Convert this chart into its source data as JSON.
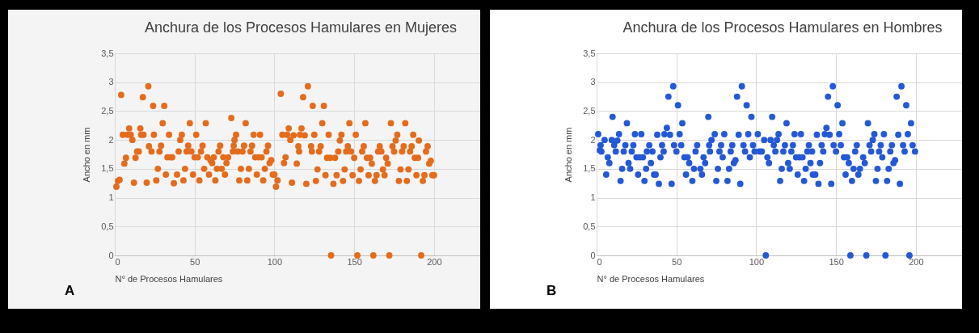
{
  "chart_data": [
    {
      "type": "scatter",
      "title": "Anchura de los Procesos Hamulares en Mujeres",
      "xlabel": "N° de Procesos Hamulares",
      "ylabel": "Ancho en mm",
      "annotations": [
        "A"
      ],
      "marker": "circle",
      "grid": true,
      "xlim": [
        0,
        233
      ],
      "xticks": [
        0,
        50,
        100,
        150,
        200
      ],
      "ylim": [
        0,
        3.5
      ],
      "yticks": [
        0,
        {
          "value": 0.5,
          "label": "0,5"
        },
        1,
        {
          "value": 1.5,
          "label": "1,5"
        },
        2,
        {
          "value": 2.5,
          "label": "2,5"
        },
        3,
        {
          "value": 3.5,
          "label": "3,5"
        }
      ],
      "series": [
        {
          "color": "#e46c1c",
          "x": [
            1,
            2,
            3,
            4,
            5,
            6,
            7,
            8,
            9,
            10,
            11,
            12,
            13,
            14,
            15,
            16,
            16.5,
            17.6,
            18,
            20,
            21,
            21.4,
            23,
            24,
            24.5,
            26,
            27,
            28,
            29,
            30,
            31,
            32,
            33,
            34,
            35,
            36,
            37,
            39,
            40,
            41,
            42,
            43,
            44,
            45,
            46,
            47,
            48,
            49,
            50,
            51,
            52,
            53,
            54,
            55,
            56,
            57,
            58,
            59,
            60,
            61,
            62,
            63,
            64,
            65,
            66,
            67,
            68,
            69,
            70,
            71,
            73,
            74,
            74.5,
            75,
            76,
            77,
            78,
            79,
            80,
            81,
            82,
            83,
            84,
            85,
            86,
            87,
            88,
            89,
            90,
            91,
            92,
            93,
            94,
            95,
            96,
            97,
            98,
            99,
            100,
            101,
            102,
            104,
            105,
            106,
            107,
            108,
            109,
            110,
            111,
            112,
            114,
            115,
            115.5,
            116,
            117,
            118,
            119,
            120,
            121,
            123,
            123.5,
            124,
            125,
            126,
            127,
            128,
            129,
            130,
            131,
            132,
            133,
            134,
            135,
            135.5,
            137,
            138,
            139,
            140,
            141,
            142,
            143,
            144,
            145,
            146,
            147,
            148,
            149,
            150,
            151,
            152,
            153,
            154,
            155,
            156,
            157,
            158,
            159,
            160,
            161,
            162,
            163,
            164,
            165,
            166,
            167,
            168,
            169,
            170,
            171,
            172,
            173,
            174,
            175,
            176,
            177,
            178,
            179,
            180,
            181,
            182,
            183,
            184,
            185,
            186,
            187,
            188,
            189,
            190,
            190.5,
            192,
            193,
            194,
            195,
            196,
            197,
            198,
            199,
            200
          ],
          "values": [
            1.19,
            1.29,
            1.31,
            2.78,
            2.09,
            1.59,
            1.69,
            2.09,
            2.2,
            2.09,
            2.0,
            1.26,
            1.69,
            1.8,
            1.8,
            2.2,
            2.09,
            2.74,
            2.09,
            1.26,
            2.93,
            1.89,
            1.8,
            2.59,
            2.09,
            1.3,
            1.5,
            1.8,
            1.9,
            2.29,
            2.59,
            1.4,
            1.7,
            2.09,
            1.7,
            1.7,
            1.25,
            1.4,
            1.8,
            2.0,
            2.09,
            1.3,
            1.5,
            1.8,
            1.9,
            2.29,
            1.8,
            1.4,
            1.7,
            2.09,
            1.7,
            1.3,
            1.8,
            1.9,
            1.5,
            2.29,
            1.7,
            1.4,
            1.65,
            1.6,
            1.7,
            1.3,
            1.5,
            1.8,
            1.9,
            1.5,
            1.7,
            1.4,
            1.6,
            1.7,
            2.38,
            1.8,
            1.9,
            2.0,
            2.09,
            1.8,
            1.3,
            1.5,
            1.8,
            1.9,
            2.29,
            1.3,
            1.5,
            1.8,
            1.9,
            2.09,
            1.7,
            1.4,
            1.7,
            2.09,
            1.7,
            1.3,
            1.5,
            1.8,
            1.9,
            1.6,
            1.65,
            1.4,
            1.4,
            1.19,
            1.3,
            2.8,
            2.09,
            1.6,
            1.7,
            2.09,
            2.2,
            2.0,
            1.26,
            2.08,
            1.59,
            1.89,
            1.8,
            2.09,
            2.2,
            2.74,
            2.08,
            1.24,
            2.93,
            1.89,
            1.8,
            2.59,
            2.09,
            1.29,
            1.49,
            1.8,
            1.89,
            2.29,
            2.59,
            1.39,
            1.69,
            2.09,
            1.69,
            0,
            1.24,
            1.69,
            1.39,
            1.8,
            1.99,
            2.09,
            1.29,
            1.49,
            1.8,
            1.89,
            2.29,
            1.8,
            1.39,
            1.69,
            2.09,
            0,
            1.29,
            1.49,
            1.8,
            1.89,
            2.29,
            1.69,
            1.39,
            1.69,
            1.59,
            0,
            1.29,
            1.39,
            1.8,
            1.89,
            1.8,
            1.49,
            1.39,
            1.69,
            1.59,
            0,
            2.29,
            1.89,
            1.8,
            1.99,
            2.09,
            1.29,
            1.49,
            1.8,
            1.89,
            2.29,
            1.29,
            1.49,
            1.8,
            1.89,
            2.09,
            1.69,
            1.39,
            1.69,
            1.99,
            0,
            1.29,
            1.39,
            1.8,
            1.89,
            1.59,
            1.64,
            1.39,
            1.39
          ]
        }
      ]
    },
    {
      "type": "scatter",
      "title": "Anchura de los Procesos Hamulares en Hombres",
      "xlabel": "N° de Procesos Hamulares",
      "ylabel": "Ancho en mm",
      "annotations": [
        "B"
      ],
      "marker": "circle",
      "grid": true,
      "xlim": [
        0,
        233
      ],
      "xticks": [
        0,
        50,
        100,
        150,
        200
      ],
      "ylim": [
        0,
        3.5
      ],
      "yticks": [
        0,
        {
          "value": 0.5,
          "label": "0,5"
        },
        1,
        {
          "value": 1.5,
          "label": "1,5"
        },
        2,
        {
          "value": 2.5,
          "label": "2,5"
        },
        3,
        {
          "value": 3.5,
          "label": "3,5"
        }
      ],
      "series": [
        {
          "color": "#2458d6",
          "x": [
            1,
            2,
            2.5,
            3,
            5,
            6,
            7,
            8,
            9.5,
            10,
            11,
            12,
            13,
            14,
            15,
            16,
            17,
            18,
            19,
            20,
            21,
            22,
            23,
            24,
            25,
            26,
            27,
            28,
            29,
            30,
            31,
            31.5,
            33,
            34,
            35,
            36,
            37,
            38,
            39,
            40,
            41,
            42,
            42.5,
            44,
            45,
            46,
            47,
            48,
            48.5,
            50,
            51,
            52,
            53,
            53.7,
            55,
            56,
            57,
            58,
            60,
            61,
            62,
            63,
            65,
            66,
            67,
            68,
            70,
            70.5,
            71,
            72,
            74,
            75,
            76,
            77,
            78,
            79,
            80,
            82,
            83,
            84,
            85,
            86,
            87,
            88,
            89,
            90,
            91,
            92,
            93,
            94,
            95,
            96,
            97,
            98,
            99,
            101,
            102,
            103.5,
            105,
            106,
            107,
            108,
            109,
            110,
            111,
            112,
            113,
            114,
            115,
            116,
            117,
            118,
            119,
            120,
            121,
            122,
            123,
            124,
            125,
            126,
            127,
            128,
            129,
            130,
            131,
            132,
            133,
            134,
            135,
            135.5,
            137,
            138,
            139,
            140,
            141,
            142,
            143,
            144,
            145,
            146,
            147,
            148,
            148.5,
            150,
            151,
            152,
            153,
            154,
            155,
            156,
            157,
            158,
            159,
            160,
            161,
            162,
            163,
            164,
            165,
            167,
            168,
            169,
            170,
            171,
            172,
            173,
            174,
            175,
            176,
            177,
            178,
            179,
            180,
            181,
            182,
            183,
            184,
            185,
            186,
            187,
            188,
            189,
            190,
            191,
            192,
            193,
            194,
            195,
            196,
            197,
            198,
            199.5
          ],
          "values": [
            2.1,
            1.82,
            1.91,
            1.8,
            2.0,
            1.4,
            1.7,
            1.6,
            2.0,
            2.4,
            1.91,
            1.8,
            1.99,
            2.1,
            1.29,
            1.5,
            1.8,
            1.91,
            2.29,
            1.6,
            1.5,
            1.8,
            1.91,
            2.1,
            1.7,
            1.4,
            1.7,
            2.1,
            1.7,
            1.29,
            1.5,
            1.8,
            1.91,
            1.6,
            1.8,
            1.4,
            1.4,
            2.09,
            1.24,
            1.7,
            1.91,
            1.8,
            2.1,
            2.21,
            2.75,
            2.09,
            1.24,
            2.93,
            1.91,
            1.8,
            2.6,
            2.1,
            1.91,
            2.29,
            1.7,
            1.4,
            1.7,
            1.6,
            1.29,
            1.5,
            1.8,
            1.91,
            1.5,
            1.4,
            1.7,
            1.6,
            2.4,
            1.91,
            1.8,
            2.0,
            2.1,
            1.29,
            1.5,
            1.8,
            1.91,
            1.7,
            2.1,
            1.29,
            1.5,
            1.8,
            1.91,
            1.6,
            1.65,
            2.75,
            2.09,
            1.24,
            2.93,
            1.91,
            1.8,
            2.6,
            2.1,
            1.7,
            2.4,
            1.91,
            1.8,
            2.1,
            1.8,
            1.8,
            2.0,
            0,
            1.7,
            1.6,
            2.0,
            2.4,
            1.91,
            1.8,
            2.0,
            2.1,
            1.29,
            1.5,
            1.8,
            1.91,
            2.29,
            1.6,
            1.5,
            1.8,
            1.91,
            2.1,
            1.7,
            1.4,
            1.7,
            2.1,
            1.7,
            1.29,
            1.5,
            1.8,
            1.91,
            1.6,
            1.8,
            1.4,
            1.4,
            2.09,
            1.24,
            1.6,
            1.91,
            1.8,
            2.1,
            2.21,
            2.75,
            2.09,
            1.24,
            2.93,
            1.91,
            1.8,
            2.6,
            2.1,
            1.91,
            2.29,
            1.7,
            1.4,
            1.7,
            1.6,
            0,
            1.29,
            1.5,
            1.8,
            1.91,
            1.4,
            1.5,
            1.7,
            1.6,
            0,
            2.29,
            1.91,
            1.8,
            2.0,
            2.1,
            1.29,
            1.5,
            1.8,
            1.91,
            1.7,
            2.1,
            0,
            1.29,
            1.5,
            1.8,
            1.91,
            1.6,
            1.65,
            2.75,
            2.09,
            1.24,
            2.93,
            1.91,
            1.8,
            2.6,
            2.1,
            0,
            2.29,
            1.91,
            1.8
          ]
        }
      ]
    }
  ]
}
